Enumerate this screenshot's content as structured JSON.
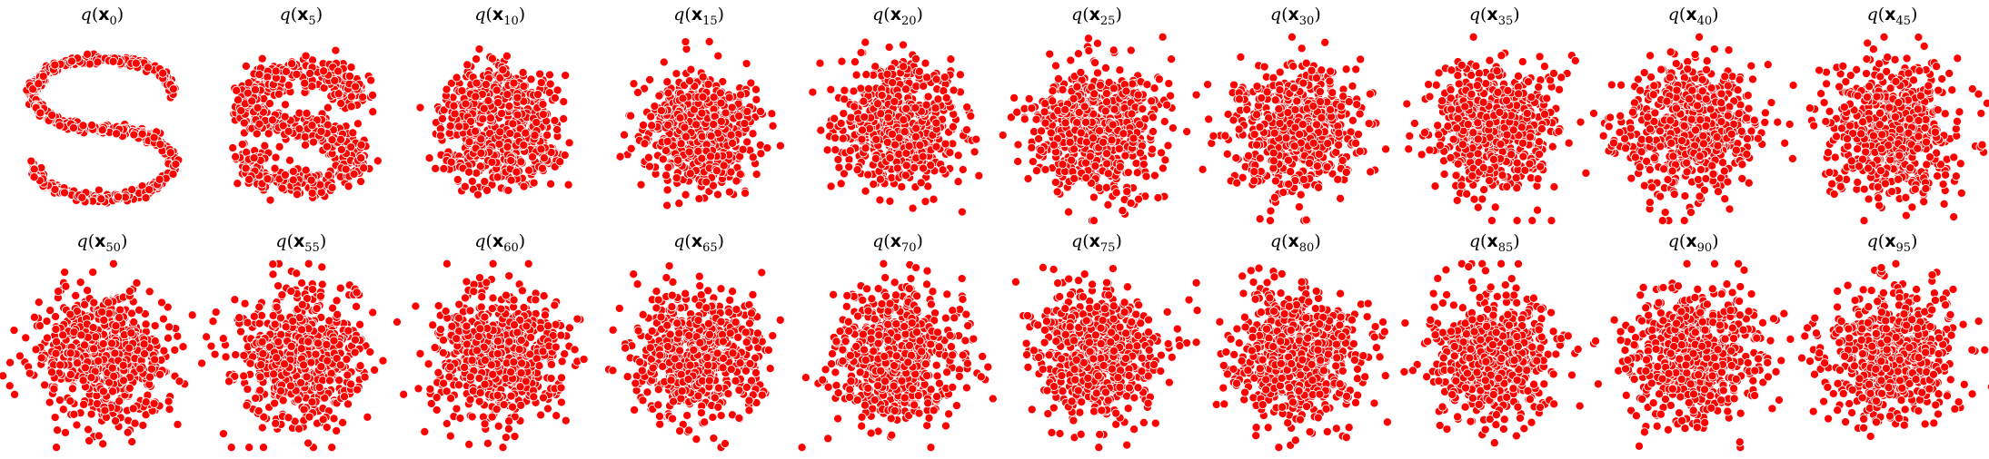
{
  "chart_data": {
    "type": "scatter",
    "layout": "grid",
    "grid": {
      "rows": 2,
      "cols": 10
    },
    "marker": {
      "color": "#ff0000",
      "edgecolor": "#ffffff",
      "style": "filled-circle"
    },
    "axes_visible": false,
    "panels": [
      {
        "title": {
          "func": "q",
          "var": "x",
          "sub": "0"
        },
        "step": 0,
        "shape": "s-curve"
      },
      {
        "title": {
          "func": "q",
          "var": "x",
          "sub": "5"
        },
        "step": 5,
        "shape": "s-curve"
      },
      {
        "title": {
          "func": "q",
          "var": "x",
          "sub": "10"
        },
        "step": 10,
        "shape": "s-curve-diffused"
      },
      {
        "title": {
          "func": "q",
          "var": "x",
          "sub": "15"
        },
        "step": 15,
        "shape": "blob"
      },
      {
        "title": {
          "func": "q",
          "var": "x",
          "sub": "20"
        },
        "step": 20,
        "shape": "blob"
      },
      {
        "title": {
          "func": "q",
          "var": "x",
          "sub": "25"
        },
        "step": 25,
        "shape": "gaussian"
      },
      {
        "title": {
          "func": "q",
          "var": "x",
          "sub": "30"
        },
        "step": 30,
        "shape": "gaussian"
      },
      {
        "title": {
          "func": "q",
          "var": "x",
          "sub": "35"
        },
        "step": 35,
        "shape": "gaussian"
      },
      {
        "title": {
          "func": "q",
          "var": "x",
          "sub": "40"
        },
        "step": 40,
        "shape": "gaussian"
      },
      {
        "title": {
          "func": "q",
          "var": "x",
          "sub": "45"
        },
        "step": 45,
        "shape": "gaussian"
      },
      {
        "title": {
          "func": "q",
          "var": "x",
          "sub": "50"
        },
        "step": 50,
        "shape": "gaussian"
      },
      {
        "title": {
          "func": "q",
          "var": "x",
          "sub": "55"
        },
        "step": 55,
        "shape": "gaussian"
      },
      {
        "title": {
          "func": "q",
          "var": "x",
          "sub": "60"
        },
        "step": 60,
        "shape": "gaussian"
      },
      {
        "title": {
          "func": "q",
          "var": "x",
          "sub": "65"
        },
        "step": 65,
        "shape": "gaussian"
      },
      {
        "title": {
          "func": "q",
          "var": "x",
          "sub": "70"
        },
        "step": 70,
        "shape": "gaussian"
      },
      {
        "title": {
          "func": "q",
          "var": "x",
          "sub": "75"
        },
        "step": 75,
        "shape": "gaussian"
      },
      {
        "title": {
          "func": "q",
          "var": "x",
          "sub": "80"
        },
        "step": 80,
        "shape": "gaussian"
      },
      {
        "title": {
          "func": "q",
          "var": "x",
          "sub": "85"
        },
        "step": 85,
        "shape": "gaussian"
      },
      {
        "title": {
          "func": "q",
          "var": "x",
          "sub": "90"
        },
        "step": 90,
        "shape": "gaussian"
      },
      {
        "title": {
          "func": "q",
          "var": "x",
          "sub": "95"
        },
        "step": 95,
        "shape": "gaussian"
      }
    ]
  }
}
